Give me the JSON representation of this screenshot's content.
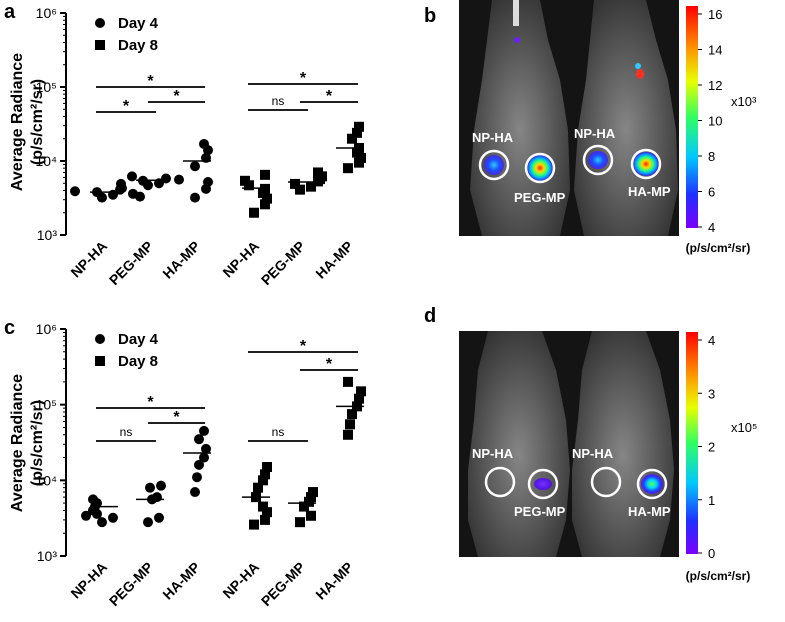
{
  "chart_data": [
    {
      "panel": "a",
      "type": "scatter",
      "ylabel": "Average Radiance",
      "yunit": "(p/s/cm²/sr)",
      "yscale": "log",
      "ylim": [
        1000,
        1000000
      ],
      "ytick_labels": [
        "10³",
        "10⁴",
        "10⁵",
        "10⁶"
      ],
      "groups": [
        "Day 4",
        "Day 8"
      ],
      "categories": [
        "NP-HA",
        "PEG-MP",
        "HA-MP"
      ],
      "legend": [
        "Day 4",
        "Day 8"
      ],
      "legend_position": "top-left",
      "series": [
        {
          "name": "Day 4",
          "marker": "circle",
          "points": {
            "NP-HA": [
              3200,
              3500,
              3800,
              4100,
              4300,
              3600,
              3900,
              3300
            ],
            "PEG-MP": [
              4700,
              5000,
              5400,
              5800,
              6200,
              5600,
              4900
            ],
            "HA-MP": [
              3200,
              4200,
              5200,
              8500,
              11000,
              14000,
              17000
            ],
            "means": {
              "NP-HA": 3800,
              "PEG-MP": 5500,
              "HA-MP": 10000
            }
          }
        },
        {
          "name": "Day 8",
          "marker": "square",
          "points": {
            "NP-HA": [
              2000,
              2600,
              3100,
              3700,
              4200,
              4700,
              5400,
              6500
            ],
            "PEG-MP": [
              4100,
              4500,
              4900,
              5300,
              5700,
              6200,
              7000
            ],
            "HA-MP": [
              8000,
              9500,
              11000,
              13000,
              15000,
              20000,
              24000,
              29000
            ],
            "means": {
              "NP-HA": 4300,
              "PEG-MP": 5200,
              "HA-MP": 15000
            }
          }
        }
      ],
      "significance": [
        {
          "group": "Day 4",
          "from": "NP-HA",
          "to": "HA-MP",
          "label": "*"
        },
        {
          "group": "Day 4",
          "from": "NP-HA",
          "to": "PEG-MP",
          "label": "*"
        },
        {
          "group": "Day 4",
          "from": "PEG-MP",
          "to": "HA-MP",
          "label": "*"
        },
        {
          "group": "Day 8",
          "from": "NP-HA",
          "to": "HA-MP",
          "label": "*"
        },
        {
          "group": "Day 8",
          "from": "NP-HA",
          "to": "PEG-MP",
          "label": "ns"
        },
        {
          "group": "Day 8",
          "from": "PEG-MP",
          "to": "HA-MP",
          "label": "*"
        }
      ]
    },
    {
      "panel": "c",
      "type": "scatter",
      "ylabel": "Average Radiance",
      "yunit": "(p/s/cm²/sr)",
      "yscale": "log",
      "ylim": [
        1000,
        1000000
      ],
      "ytick_labels": [
        "10³",
        "10⁴",
        "10⁵",
        "10⁶"
      ],
      "groups": [
        "Day 4",
        "Day 8"
      ],
      "categories": [
        "NP-HA",
        "PEG-MP",
        "HA-MP"
      ],
      "legend": [
        "Day 4",
        "Day 8"
      ],
      "legend_position": "top-left",
      "series": [
        {
          "name": "Day 4",
          "marker": "circle",
          "points": {
            "NP-HA": [
              2800,
              3200,
              3600,
              4000,
              4500,
              5000,
              5600,
              3400
            ],
            "PEG-MP": [
              2800,
              3200,
              5600,
              6000,
              8000,
              8500
            ],
            "HA-MP": [
              7000,
              11000,
              16000,
              20000,
              26000,
              35000,
              45000
            ],
            "means": {
              "NP-HA": 4500,
              "PEG-MP": 5600,
              "HA-MP": 23000
            }
          }
        },
        {
          "name": "Day 8",
          "marker": "square",
          "points": {
            "NP-HA": [
              2600,
              3000,
              3800,
              4500,
              6000,
              8000,
              10000,
              12000,
              15000
            ],
            "PEG-MP": [
              2800,
              3400,
              4500,
              5200,
              6000,
              7000
            ],
            "HA-MP": [
              40000,
              55000,
              75000,
              95000,
              120000,
              150000,
              200000
            ],
            "means": {
              "NP-HA": 6000,
              "PEG-MP": 5000,
              "HA-MP": 95000
            }
          }
        }
      ],
      "significance": [
        {
          "group": "Day 4",
          "from": "NP-HA",
          "to": "HA-MP",
          "label": "*"
        },
        {
          "group": "Day 4",
          "from": "NP-HA",
          "to": "PEG-MP",
          "label": "ns"
        },
        {
          "group": "Day 4",
          "from": "PEG-MP",
          "to": "HA-MP",
          "label": "*"
        },
        {
          "group": "Day 8",
          "from": "NP-HA",
          "to": "HA-MP",
          "label": "*"
        },
        {
          "group": "Day 8",
          "from": "NP-HA",
          "to": "PEG-MP",
          "label": "ns"
        },
        {
          "group": "Day 8",
          "from": "PEG-MP",
          "to": "HA-MP",
          "label": "*"
        }
      ]
    },
    {
      "panel": "b",
      "type": "heatmap",
      "colorbar": {
        "min": 4,
        "max": 16,
        "ticks": [
          "4",
          "6",
          "8",
          "10",
          "12",
          "14",
          "16"
        ],
        "multiplier": "x10³",
        "unit": "(p/s/cm²/sr)"
      },
      "roi_labels": [
        "NP-HA",
        "PEG-MP",
        "NP-HA",
        "HA-MP"
      ]
    },
    {
      "panel": "d",
      "type": "heatmap",
      "colorbar": {
        "min": 0,
        "max": 4,
        "ticks": [
          "0",
          "1",
          "2",
          "3",
          "4"
        ],
        "multiplier": "x10⁵",
        "unit": "(p/s/cm²/sr)"
      },
      "roi_labels": [
        "NP-HA",
        "PEG-MP",
        "NP-HA",
        "HA-MP"
      ]
    }
  ],
  "panels": {
    "a": {
      "letter": "a"
    },
    "b": {
      "letter": "b"
    },
    "c": {
      "letter": "c"
    },
    "d": {
      "letter": "d"
    }
  }
}
